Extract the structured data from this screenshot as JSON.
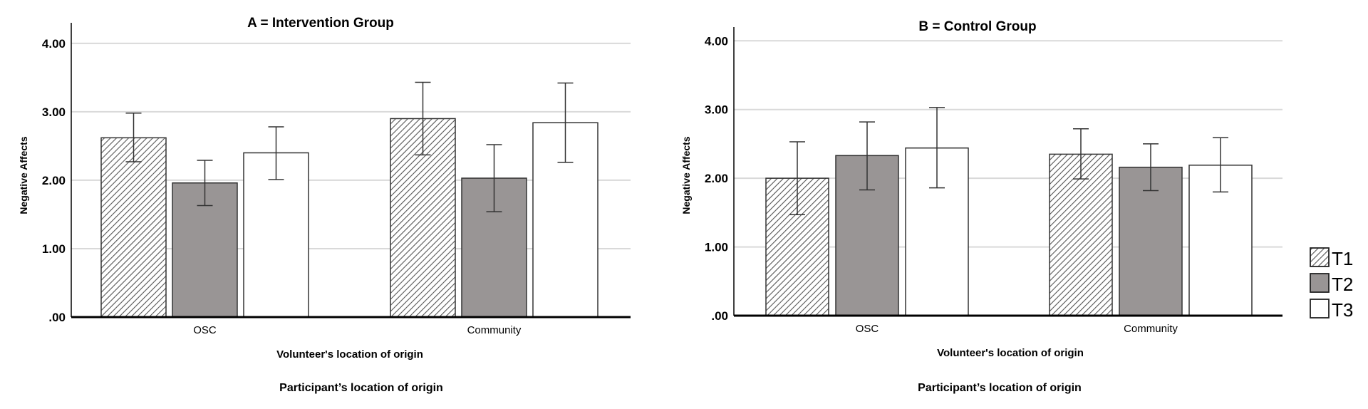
{
  "chart_data": [
    {
      "type": "bar",
      "title": "A = Intervention Group",
      "xlabel": "Volunteer's location of origin",
      "ylabel": "Negative Affects",
      "caption": "Participant’s location of origin",
      "categories": [
        "OSC",
        "Community"
      ],
      "yticks": [
        ".00",
        "1.00",
        "2.00",
        "3.00",
        "4.00"
      ],
      "ylim": [
        0,
        4.3
      ],
      "grid": true,
      "series": [
        {
          "name": "T1",
          "values": [
            2.62,
            2.9
          ],
          "err_low": [
            2.27,
            2.37
          ],
          "err_high": [
            2.98,
            3.43
          ]
        },
        {
          "name": "T2",
          "values": [
            1.96,
            2.03
          ],
          "err_low": [
            1.63,
            1.54
          ],
          "err_high": [
            2.29,
            2.52
          ]
        },
        {
          "name": "T3",
          "values": [
            2.4,
            2.84
          ],
          "err_low": [
            2.01,
            2.26
          ],
          "err_high": [
            2.78,
            3.42
          ]
        }
      ]
    },
    {
      "type": "bar",
      "title": "B = Control Group",
      "xlabel": "Volunteer's location of origin",
      "ylabel": "Negative Affects",
      "caption": "Participant’s location of origin",
      "categories": [
        "OSC",
        "Community"
      ],
      "yticks": [
        ".00",
        "1.00",
        "2.00",
        "3.00",
        "4.00"
      ],
      "ylim": [
        0,
        4.2
      ],
      "grid": true,
      "series": [
        {
          "name": "T1",
          "values": [
            2.0,
            2.35
          ],
          "err_low": [
            1.47,
            1.99
          ],
          "err_high": [
            2.53,
            2.72
          ]
        },
        {
          "name": "T2",
          "values": [
            2.33,
            2.16
          ],
          "err_low": [
            1.83,
            1.82
          ],
          "err_high": [
            2.82,
            2.5
          ]
        },
        {
          "name": "T3",
          "values": [
            2.44,
            2.19
          ],
          "err_low": [
            1.86,
            1.8
          ],
          "err_high": [
            3.03,
            2.59
          ]
        }
      ]
    }
  ],
  "legend": {
    "position": "right",
    "items": [
      {
        "label": "T1",
        "fill": "hatched"
      },
      {
        "label": "T2",
        "fill": "#999595"
      },
      {
        "label": "T3",
        "fill": "#ffffff"
      }
    ]
  },
  "colors": {
    "hatch": "#555555",
    "t2": "#999595",
    "t3": "#ffffff",
    "grid": "#d9d9d9",
    "axis": "#000000"
  }
}
